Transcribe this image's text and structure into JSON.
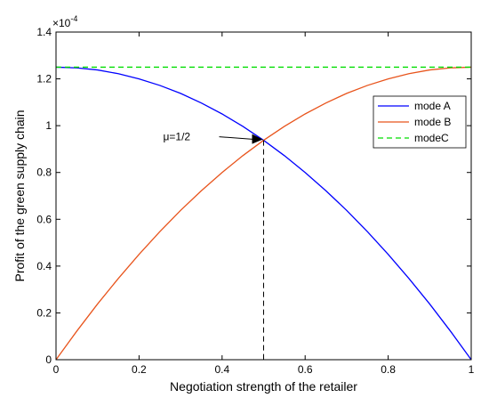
{
  "chart_data": {
    "type": "line",
    "xlabel": "Negotiation strength of the retailer",
    "ylabel": "Profit of the green supply chain",
    "y_multiplier": "×10",
    "y_multiplier_exp": "-4",
    "xlim": [
      0,
      1
    ],
    "ylim": [
      0,
      1.4
    ],
    "x_ticks": [
      0,
      0.2,
      0.4,
      0.6,
      0.8,
      1
    ],
    "x_tick_labels": [
      "0",
      "0.2",
      "0.4",
      "0.6",
      "0.8",
      "1"
    ],
    "y_ticks": [
      0,
      0.2,
      0.4,
      0.6,
      0.8,
      1,
      1.2,
      1.4
    ],
    "y_tick_labels": [
      "0",
      "0.2",
      "0.4",
      "0.6",
      "0.8",
      "1",
      "1.2",
      "1.4"
    ],
    "grid": false,
    "legend_position": "right",
    "x": [
      0,
      0.05,
      0.1,
      0.15,
      0.2,
      0.25,
      0.3,
      0.35,
      0.4,
      0.45,
      0.5,
      0.55,
      0.6,
      0.65,
      0.7,
      0.75,
      0.8,
      0.85,
      0.9,
      0.95,
      1
    ],
    "series": [
      {
        "name": "mode A",
        "color": "#0000ff",
        "style": "solid",
        "values": [
          1.25,
          1.247,
          1.238,
          1.222,
          1.2,
          1.172,
          1.138,
          1.097,
          1.05,
          0.997,
          0.9375,
          0.872,
          0.8,
          0.722,
          0.638,
          0.547,
          0.45,
          0.347,
          0.238,
          0.122,
          0
        ]
      },
      {
        "name": "mode B",
        "color": "#e8541c",
        "style": "solid",
        "values": [
          0,
          0.122,
          0.238,
          0.347,
          0.45,
          0.547,
          0.638,
          0.722,
          0.8,
          0.872,
          0.9375,
          0.997,
          1.05,
          1.097,
          1.138,
          1.172,
          1.2,
          1.222,
          1.238,
          1.247,
          1.25
        ]
      },
      {
        "name": "modeC",
        "color": "#00dd00",
        "style": "dashed",
        "values": [
          1.25,
          1.25,
          1.25,
          1.25,
          1.25,
          1.25,
          1.25,
          1.25,
          1.25,
          1.25,
          1.25,
          1.25,
          1.25,
          1.25,
          1.25,
          1.25,
          1.25,
          1.25,
          1.25,
          1.25,
          1.25
        ]
      }
    ],
    "annotations": [
      {
        "text": "μ=1/2",
        "x": 0.5,
        "y": 0.9375
      }
    ]
  }
}
